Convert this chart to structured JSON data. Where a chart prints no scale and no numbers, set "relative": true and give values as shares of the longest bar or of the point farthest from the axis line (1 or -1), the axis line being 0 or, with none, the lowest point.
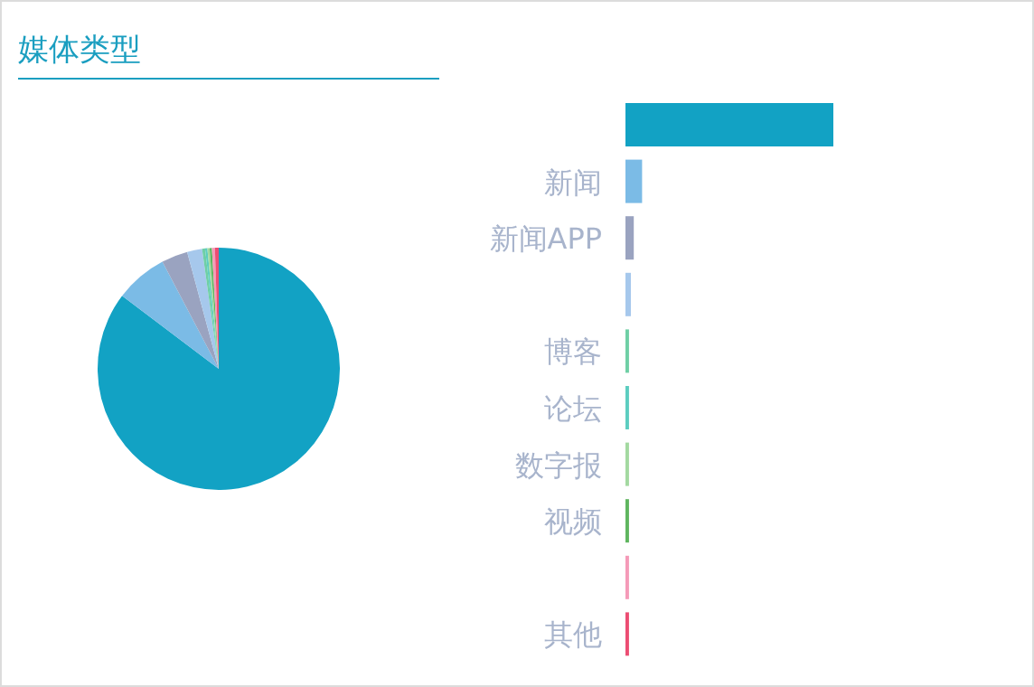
{
  "chart_data": [
    {
      "type": "pie",
      "title": "媒体类型",
      "categories": [
        null,
        null,
        null,
        null,
        null,
        null,
        null,
        null,
        null,
        null
      ],
      "values": [
        85.3,
        7,
        3.5,
        2,
        0.4,
        0.3,
        0.3,
        0.3,
        0.4,
        0.5
      ],
      "colors": [
        "#12a2c4",
        "#7bbbe6",
        "#9aa3c0",
        "#a6c8ec",
        "#6fcfa5",
        "#5ccdc0",
        "#a3d9a0",
        "#5fb55f",
        "#f59ab8",
        "#ec4d73"
      ]
    },
    {
      "type": "bar",
      "orientation": "horizontal",
      "relative": true,
      "categories": [
        null,
        "新闻",
        "新闻APP",
        null,
        "博客",
        "论坛",
        "数字报",
        "视频",
        null,
        "其他"
      ],
      "values": [
        1,
        0.08,
        0.04,
        0.026,
        0.017,
        0.017,
        0.017,
        0.017,
        0.017,
        0.017
      ],
      "colors": [
        "#12a2c4",
        "#7bbbe6",
        "#9aa3c0",
        "#a6c8ec",
        "#6fcfa5",
        "#5ccdc0",
        "#a3d9a0",
        "#5fb55f",
        "#f59ab8",
        "#ec4d73"
      ]
    }
  ]
}
